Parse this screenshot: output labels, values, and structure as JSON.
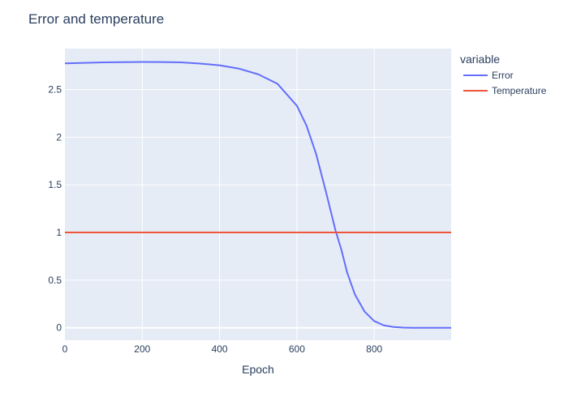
{
  "chart_data": {
    "type": "line",
    "title": "Error and temperature",
    "xlabel": "Epoch",
    "ylabel": "",
    "xlim": [
      0,
      999
    ],
    "ylim": [
      -0.13,
      2.93
    ],
    "x_ticks": [
      0,
      200,
      400,
      600,
      800
    ],
    "y_ticks": [
      0,
      0.5,
      1,
      1.5,
      2,
      2.5
    ],
    "x_tick_labels": [
      "0",
      "200",
      "400",
      "600",
      "800"
    ],
    "y_tick_labels": [
      "0",
      "0.5",
      "1",
      "1.5",
      "2",
      "2.5"
    ],
    "grid": true,
    "legend": {
      "title": "variable",
      "position": "top-right",
      "placement": "outside"
    },
    "series": [
      {
        "name": "Error",
        "color": "#636efa",
        "x": [
          0,
          100,
          200,
          250,
          300,
          350,
          400,
          450,
          500,
          550,
          600,
          625,
          650,
          675,
          700,
          715,
          730,
          750,
          775,
          800,
          825,
          850,
          875,
          900,
          950,
          999
        ],
        "y": [
          2.775,
          2.785,
          2.79,
          2.789,
          2.785,
          2.773,
          2.755,
          2.72,
          2.66,
          2.56,
          2.33,
          2.12,
          1.82,
          1.43,
          1.02,
          0.82,
          0.58,
          0.35,
          0.17,
          0.07,
          0.025,
          0.008,
          0.002,
          0.0,
          0.0,
          0.0
        ]
      },
      {
        "name": "Temperature",
        "color": "#ef553b",
        "x": [
          0,
          999
        ],
        "y": [
          1,
          1
        ]
      }
    ]
  }
}
